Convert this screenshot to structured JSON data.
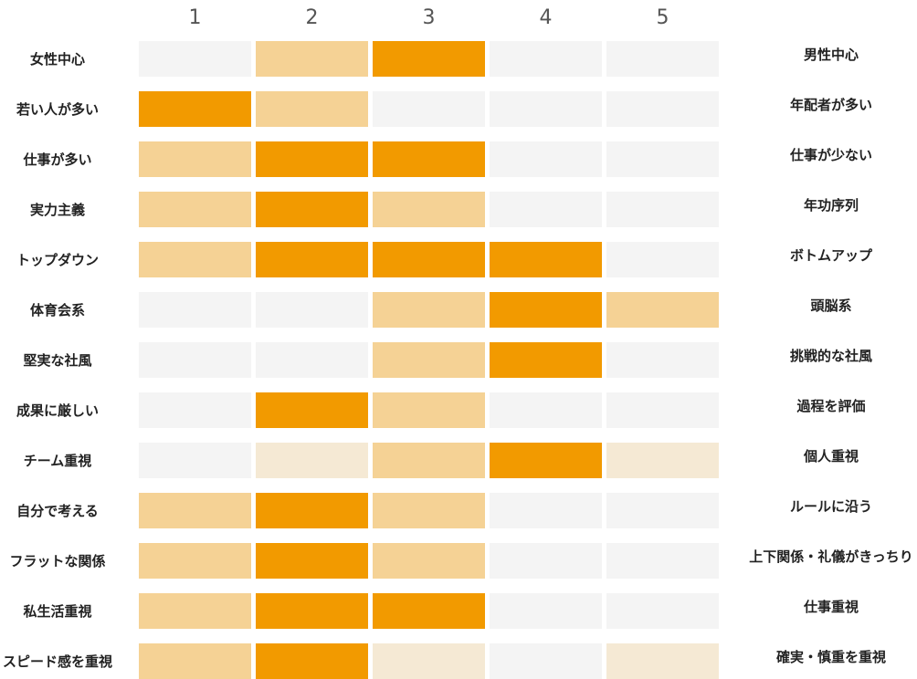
{
  "chart_data": {
    "type": "heatmap",
    "columns": [
      "1",
      "2",
      "3",
      "4",
      "5"
    ],
    "rows": [
      {
        "left": "女性中心",
        "right": "男性中心",
        "values": [
          0,
          1,
          2,
          0,
          0
        ]
      },
      {
        "left": "若い人が多い",
        "right": "年配者が多い",
        "values": [
          2,
          1,
          0,
          0,
          0
        ]
      },
      {
        "left": "仕事が多い",
        "right": "仕事が少ない",
        "values": [
          1,
          2,
          2,
          0,
          0
        ]
      },
      {
        "left": "実力主義",
        "right": "年功序列",
        "values": [
          1,
          2,
          1,
          0,
          0
        ]
      },
      {
        "left": "トップダウン",
        "right": "ボトムアップ",
        "values": [
          1,
          2,
          2,
          2,
          0
        ]
      },
      {
        "left": "体育会系",
        "right": "頭脳系",
        "values": [
          0,
          0,
          1,
          2,
          1
        ]
      },
      {
        "left": "堅実な社風",
        "right": "挑戦的な社風",
        "values": [
          0,
          0,
          1,
          2,
          0
        ]
      },
      {
        "left": "成果に厳しい",
        "right": "過程を評価",
        "values": [
          0,
          2,
          1,
          0,
          0
        ]
      },
      {
        "left": "チーム重視",
        "right": "個人重視",
        "values": [
          0,
          3,
          1,
          2,
          3
        ]
      },
      {
        "left": "自分で考える",
        "right": "ルールに沿う",
        "values": [
          1,
          2,
          1,
          0,
          0
        ]
      },
      {
        "left": "フラットな関係",
        "right": "上下関係・礼儀がきっちり",
        "values": [
          1,
          2,
          1,
          0,
          0
        ]
      },
      {
        "left": "私生活重視",
        "right": "仕事重視",
        "values": [
          1,
          2,
          2,
          0,
          0
        ]
      },
      {
        "left": "スピード感を重視",
        "right": "確実・慎重を重視",
        "values": [
          1,
          2,
          3,
          0,
          3
        ]
      }
    ],
    "colors": {
      "0": "#f4f4f4",
      "1": "#f5d295",
      "2": "#f29a00",
      "3": "#f5e9d4"
    }
  }
}
